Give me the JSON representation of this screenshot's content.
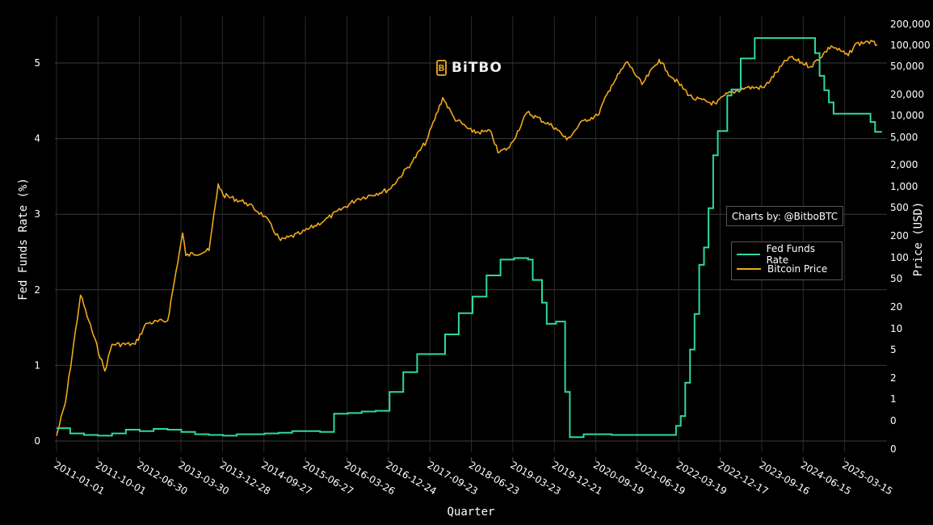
{
  "chart_data": {
    "type": "line",
    "title": "",
    "xlabel": "Quarter",
    "ylabel": "Fed Funds Rate (%)",
    "y2label": "Price (USD)",
    "x_ticks": [
      "2011-01-01",
      "2011-10-01",
      "2012-06-30",
      "2013-03-30",
      "2013-12-28",
      "2014-09-27",
      "2015-06-27",
      "2016-03-26",
      "2016-12-24",
      "2017-09-23",
      "2018-06-23",
      "2019-03-23",
      "2019-12-21",
      "2020-09-19",
      "2021-06-19",
      "2022-03-19",
      "2022-12-17",
      "2023-09-16",
      "2024-06-15",
      "2025-03-15"
    ],
    "y_ticks": [
      "0",
      "1",
      "2",
      "3",
      "4",
      "5"
    ],
    "y_range": [
      -0.05,
      5.5
    ],
    "y2_ticks": [
      "200,000",
      "100,000",
      "50,000",
      "20,000",
      "10,000",
      "5,000",
      "2,000",
      "1,000",
      "500",
      "200",
      "100",
      "50",
      "20",
      "10",
      "5",
      "2",
      "1",
      "0",
      "0"
    ],
    "y2_scale": "log",
    "grid": true,
    "legend_position": "right, inside plot",
    "series": [
      {
        "name": "Fed Funds Rate",
        "axis": "left",
        "color": "#2ed8a0",
        "points": [
          [
            "2011-01-01",
            0.17
          ],
          [
            "2011-04-01",
            0.1
          ],
          [
            "2011-07-01",
            0.08
          ],
          [
            "2011-10-01",
            0.07
          ],
          [
            "2012-01-01",
            0.1
          ],
          [
            "2012-04-01",
            0.15
          ],
          [
            "2012-07-01",
            0.13
          ],
          [
            "2012-10-01",
            0.16
          ],
          [
            "2013-01-01",
            0.15
          ],
          [
            "2013-04-01",
            0.12
          ],
          [
            "2013-07-01",
            0.09
          ],
          [
            "2013-10-01",
            0.08
          ],
          [
            "2014-01-01",
            0.07
          ],
          [
            "2014-04-01",
            0.09
          ],
          [
            "2014-07-01",
            0.09
          ],
          [
            "2014-10-01",
            0.1
          ],
          [
            "2015-01-01",
            0.11
          ],
          [
            "2015-04-01",
            0.13
          ],
          [
            "2015-07-01",
            0.13
          ],
          [
            "2015-10-01",
            0.12
          ],
          [
            "2016-01-01",
            0.36
          ],
          [
            "2016-04-01",
            0.37
          ],
          [
            "2016-07-01",
            0.39
          ],
          [
            "2016-10-01",
            0.4
          ],
          [
            "2017-01-01",
            0.65
          ],
          [
            "2017-04-01",
            0.91
          ],
          [
            "2017-07-01",
            1.15
          ],
          [
            "2017-10-01",
            1.15
          ],
          [
            "2018-01-01",
            1.41
          ],
          [
            "2018-04-01",
            1.69
          ],
          [
            "2018-07-01",
            1.91
          ],
          [
            "2018-10-01",
            2.19
          ],
          [
            "2019-01-01",
            2.4
          ],
          [
            "2019-04-01",
            2.42
          ],
          [
            "2019-07-01",
            2.4
          ],
          [
            "2019-08-01",
            2.13
          ],
          [
            "2019-10-01",
            1.83
          ],
          [
            "2019-11-01",
            1.55
          ],
          [
            "2020-01-01",
            1.58
          ],
          [
            "2020-03-01",
            0.65
          ],
          [
            "2020-04-01",
            0.05
          ],
          [
            "2020-07-01",
            0.09
          ],
          [
            "2021-01-01",
            0.08
          ],
          [
            "2021-07-01",
            0.08
          ],
          [
            "2021-10-01",
            0.08
          ],
          [
            "2022-03-01",
            0.2
          ],
          [
            "2022-04-01",
            0.33
          ],
          [
            "2022-05-01",
            0.77
          ],
          [
            "2022-06-01",
            1.21
          ],
          [
            "2022-07-01",
            1.68
          ],
          [
            "2022-08-01",
            2.33
          ],
          [
            "2022-09-01",
            2.56
          ],
          [
            "2022-10-01",
            3.08
          ],
          [
            "2022-11-01",
            3.78
          ],
          [
            "2022-12-01",
            4.1
          ],
          [
            "2023-02-01",
            4.57
          ],
          [
            "2023-03-01",
            4.65
          ],
          [
            "2023-05-01",
            5.06
          ],
          [
            "2023-08-01",
            5.33
          ],
          [
            "2024-08-01",
            5.33
          ],
          [
            "2024-09-01",
            5.13
          ],
          [
            "2024-10-01",
            4.83
          ],
          [
            "2024-11-01",
            4.64
          ],
          [
            "2024-12-01",
            4.48
          ],
          [
            "2025-01-01",
            4.33
          ],
          [
            "2025-09-01",
            4.22
          ],
          [
            "2025-10-01",
            4.09
          ]
        ]
      },
      {
        "name": "Bitcoin Price",
        "axis": "right",
        "color": "#f0a81c",
        "points": [
          [
            "2011-01-01",
            0.3
          ],
          [
            "2011-03-01",
            0.9
          ],
          [
            "2011-06-08",
            30
          ],
          [
            "2011-08-01",
            13
          ],
          [
            "2011-11-15",
            2.5
          ],
          [
            "2012-01-01",
            6
          ],
          [
            "2012-06-01",
            6
          ],
          [
            "2012-08-15",
            12
          ],
          [
            "2013-01-01",
            13
          ],
          [
            "2013-04-10",
            230
          ],
          [
            "2013-05-01",
            110
          ],
          [
            "2013-10-01",
            130
          ],
          [
            "2013-11-30",
            1150
          ],
          [
            "2014-01-01",
            800
          ],
          [
            "2014-06-01",
            620
          ],
          [
            "2014-10-01",
            400
          ],
          [
            "2015-01-14",
            180
          ],
          [
            "2015-06-01",
            230
          ],
          [
            "2015-11-01",
            350
          ],
          [
            "2016-06-01",
            700
          ],
          [
            "2016-12-31",
            960
          ],
          [
            "2017-06-01",
            2400
          ],
          [
            "2017-09-01",
            4700
          ],
          [
            "2017-12-17",
            19500
          ],
          [
            "2018-03-01",
            10000
          ],
          [
            "2018-06-30",
            6300
          ],
          [
            "2018-11-01",
            6300
          ],
          [
            "2018-12-15",
            3200
          ],
          [
            "2019-03-01",
            3800
          ],
          [
            "2019-06-26",
            12000
          ],
          [
            "2019-12-31",
            7200
          ],
          [
            "2020-03-12",
            4900
          ],
          [
            "2020-07-01",
            9200
          ],
          [
            "2020-10-01",
            10800
          ],
          [
            "2020-12-31",
            29000
          ],
          [
            "2021-04-14",
            63000
          ],
          [
            "2021-07-20",
            29800
          ],
          [
            "2021-11-10",
            68000
          ],
          [
            "2022-01-01",
            46000
          ],
          [
            "2022-06-18",
            19000
          ],
          [
            "2022-11-21",
            15800
          ],
          [
            "2023-01-15",
            21000
          ],
          [
            "2023-06-01",
            27000
          ],
          [
            "2023-10-01",
            27000
          ],
          [
            "2024-03-14",
            73000
          ],
          [
            "2024-08-05",
            54000
          ],
          [
            "2024-12-17",
            106000
          ],
          [
            "2025-04-08",
            77000
          ],
          [
            "2025-05-22",
            111000
          ],
          [
            "2025-08-14",
            123000
          ],
          [
            "2025-10-15",
            110000
          ]
        ]
      }
    ],
    "annotations": [
      "Charts by: @BitboBTC",
      "BiTBO"
    ]
  },
  "ui": {
    "credit": "Charts by: @BitboBTC",
    "brand": "BiTBO",
    "brand_mark": "B",
    "legend": [
      {
        "label": "Fed Funds Rate",
        "color": "#2ed8a0"
      },
      {
        "label": "Bitcoin Price",
        "color": "#f0a81c"
      }
    ]
  }
}
